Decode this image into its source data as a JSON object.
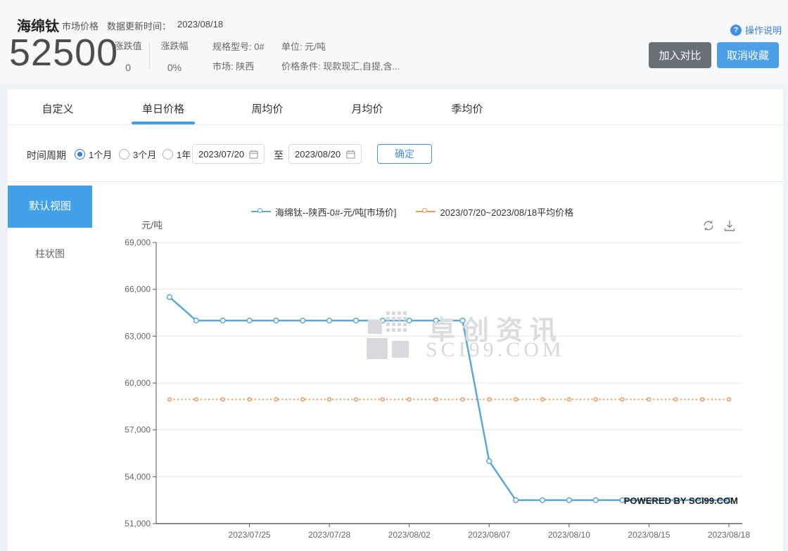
{
  "header": {
    "product": "海绵钛",
    "category": "市场价格",
    "update_time_label": "数据更新时间：",
    "update_time": "2023/08/18",
    "price": "52500",
    "stats": [
      {
        "label": "涨跌值",
        "value": "0"
      },
      {
        "label": "涨跌幅",
        "value": "0%"
      }
    ],
    "attrs": {
      "spec": "规格型号: 0#",
      "market": "市场: 陕西",
      "unit": "单位: 元/吨",
      "condition": "价格条件: 现款现汇,自提,含..."
    },
    "help_icon": "?",
    "help_label": "操作说明",
    "compare_button": "加入对比",
    "favorite_button": "取消收藏"
  },
  "tabs": {
    "items": [
      {
        "label": "自定义",
        "active": false
      },
      {
        "label": "单日价格",
        "active": true
      },
      {
        "label": "周均价",
        "active": false
      },
      {
        "label": "月均价",
        "active": false
      },
      {
        "label": "季均价",
        "active": false
      }
    ]
  },
  "filter": {
    "label": "时间周期",
    "periods": [
      {
        "label": "1个月",
        "selected": true
      },
      {
        "label": "3个月",
        "selected": false
      },
      {
        "label": "1年",
        "selected": false
      }
    ],
    "start_date": "2023/07/20",
    "to_label": "至",
    "end_date": "2023/08/20",
    "confirm_button": "确定"
  },
  "views": [
    {
      "label": "默认视图",
      "active": true
    },
    {
      "label": "柱状图",
      "active": false
    }
  ],
  "chart": {
    "unit": "元/吨",
    "watermark_cn": "卓创资讯",
    "watermark_en": "SCI99.COM",
    "powered_by": "POWERED BY SCI99.COM",
    "colors": {
      "price_line": "#5BA7D7",
      "average_line": "#ED9A5F"
    }
  },
  "chart_data": {
    "type": "line",
    "title": "",
    "xlabel": "",
    "ylabel": "元/吨",
    "ylim": [
      51000,
      69000
    ],
    "ytick_step": 3000,
    "grid": true,
    "legend_position": "top-center",
    "x": [
      "2023/07/20",
      "2023/07/21",
      "2023/07/24",
      "2023/07/25",
      "2023/07/26",
      "2023/07/27",
      "2023/07/28",
      "2023/07/31",
      "2023/08/01",
      "2023/08/02",
      "2023/08/03",
      "2023/08/04",
      "2023/08/07",
      "2023/08/08",
      "2023/08/09",
      "2023/08/10",
      "2023/08/11",
      "2023/08/14",
      "2023/08/15",
      "2023/08/16",
      "2023/08/17",
      "2023/08/18"
    ],
    "xtick_indices": [
      3,
      6,
      9,
      12,
      15,
      18,
      21
    ],
    "xtick_labels": [
      "2023/07/25",
      "2023/07/28",
      "2023/08/02",
      "2023/08/07",
      "2023/08/10",
      "2023/08/15",
      "2023/08/18"
    ],
    "series": [
      {
        "name": "海绵钛--陕西-0#-元/吨[市场价]",
        "color": "#5BA7D7",
        "style": "solid",
        "values": [
          65500,
          64000,
          64000,
          64000,
          64000,
          64000,
          64000,
          64000,
          64000,
          64000,
          64000,
          64000,
          55000,
          52500,
          52500,
          52500,
          52500,
          52500,
          52500,
          52500,
          52500,
          52500
        ]
      },
      {
        "name": "2023/07/20~2023/08/18平均价格",
        "color": "#ED9A5F",
        "style": "dotted",
        "constant_value": 58955
      }
    ]
  }
}
